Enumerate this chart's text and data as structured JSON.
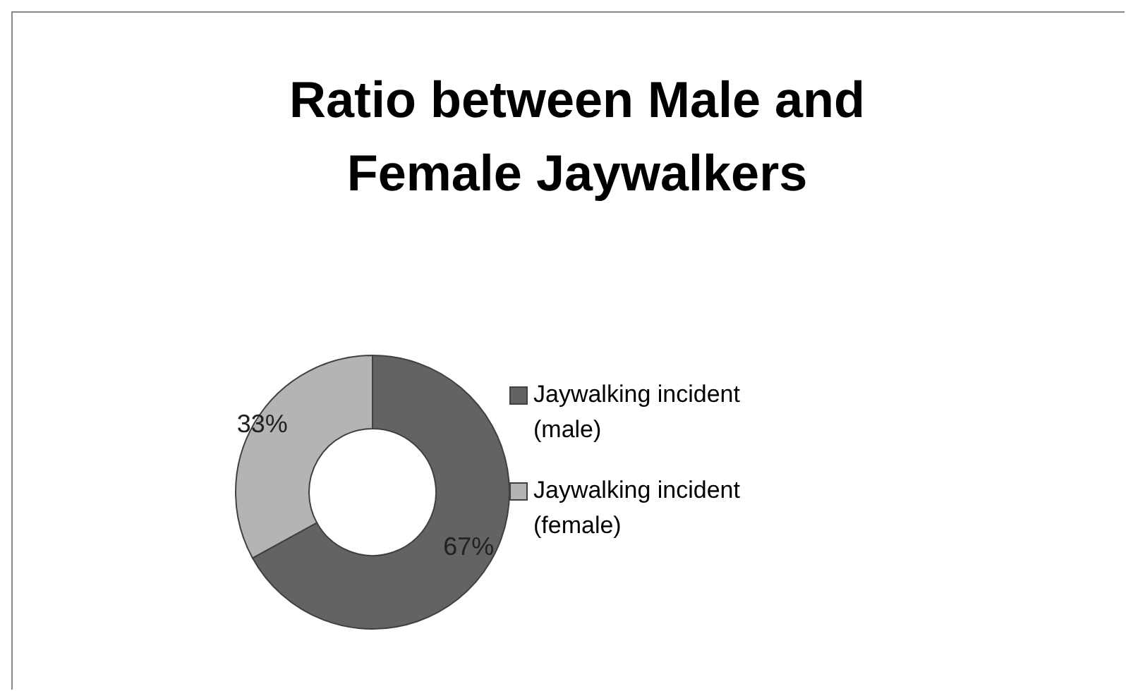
{
  "chart_data": {
    "type": "donut",
    "title": "Ratio between Male and Female Jaywalkers",
    "categories": [
      "Jaywalking incident (male)",
      "Jaywalking incident (female)"
    ],
    "values": [
      67,
      33
    ],
    "colors": [
      "#636363",
      "#b4b4b4"
    ],
    "value_labels": [
      "67%",
      "33%"
    ],
    "legend": "right"
  }
}
